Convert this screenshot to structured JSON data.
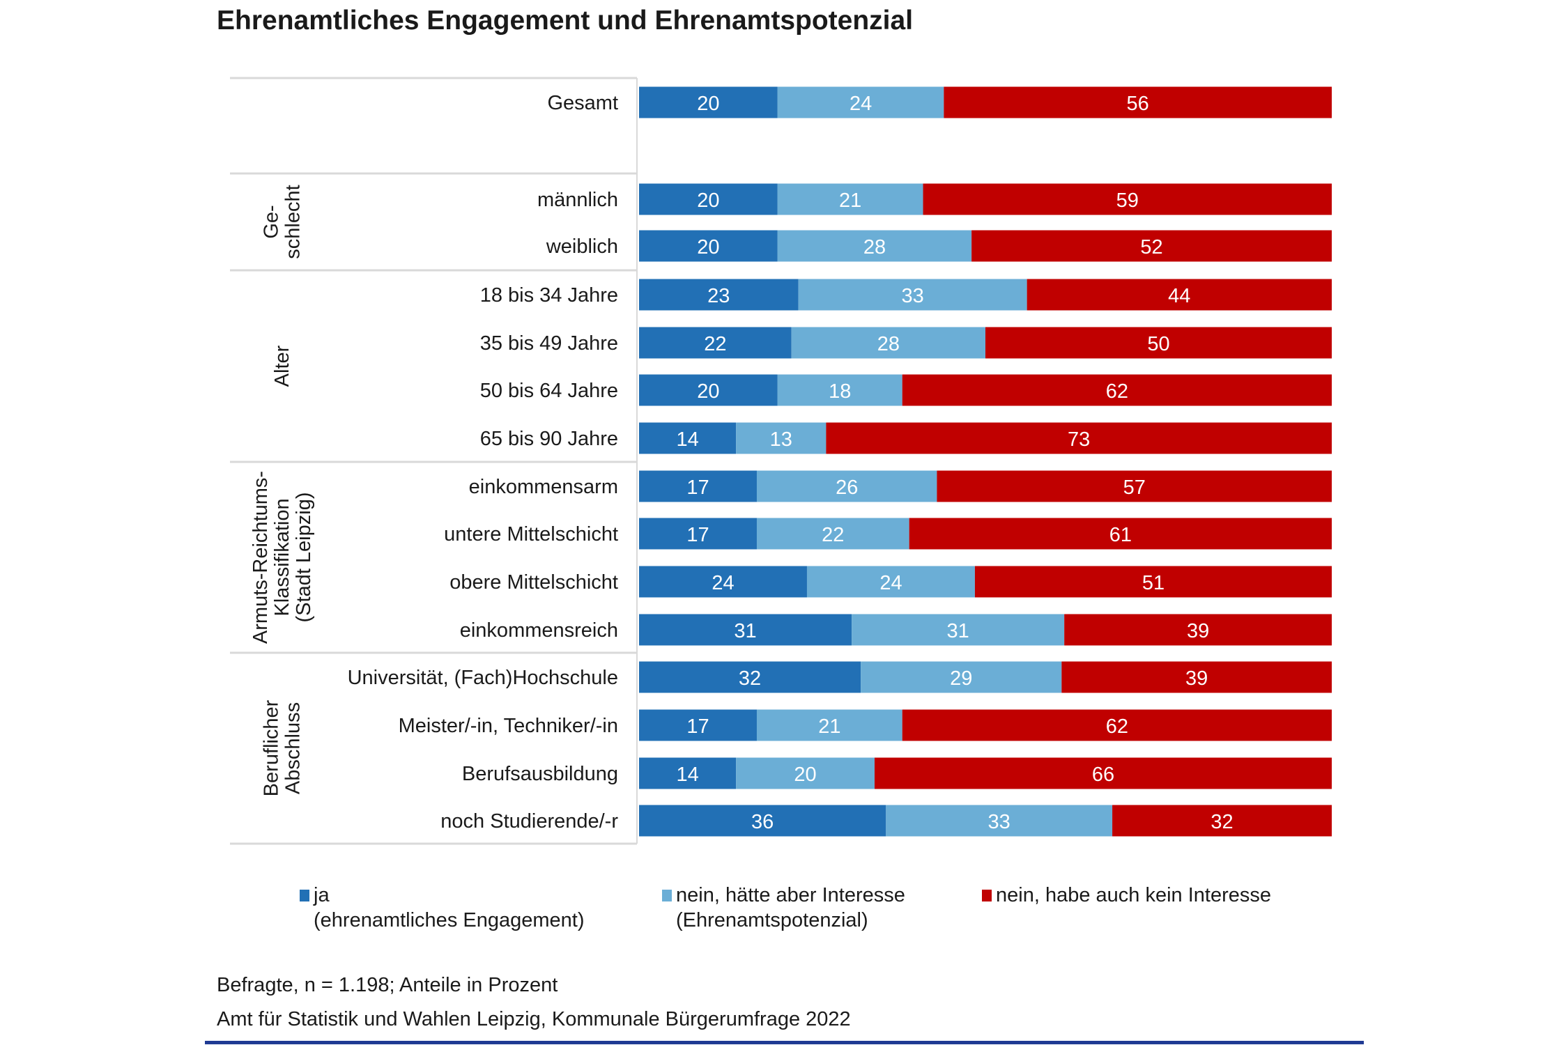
{
  "chart_data": {
    "type": "bar",
    "orientation": "horizontal",
    "stacked": true,
    "title": "Ehrenamtliches Engagement und Ehrenamtspotenzial",
    "categories": [
      "Gesamt",
      "männlich",
      "weiblich",
      "18 bis 34 Jahre",
      "35 bis 49 Jahre",
      "50 bis 64 Jahre",
      "65 bis 90 Jahre",
      "einkommensarm",
      "untere Mittelschicht",
      "obere Mittelschicht",
      "einkommensreich",
      "Universität, (Fach)Hochschule",
      "Meister/-in, Techniker/-in",
      "Berufsausbildung",
      "noch Studierende/-r"
    ],
    "groups": [
      {
        "label": "",
        "lines": [],
        "rows": [
          0
        ]
      },
      {
        "label": "Geschlecht",
        "lines": [
          "Ge-",
          "schlecht"
        ],
        "rows": [
          1,
          2
        ]
      },
      {
        "label": "Alter",
        "lines": [
          "Alter"
        ],
        "rows": [
          3,
          4,
          5,
          6
        ]
      },
      {
        "label": "Armuts-Reichtums-Klassifikation (Stadt Leipzig)",
        "lines": [
          "Armuts-Reichtums-",
          "Klassifikation",
          "(Stadt Leipzig)"
        ],
        "rows": [
          7,
          8,
          9,
          10
        ]
      },
      {
        "label": "Beruflicher Abschluss",
        "lines": [
          "Beruflicher",
          "Abschluss"
        ],
        "rows": [
          11,
          12,
          13,
          14
        ]
      }
    ],
    "series": [
      {
        "name": "ja (ehrenamtliches Engagement)",
        "legend_lines": [
          "ja",
          "(ehrenamtliches Engagement)"
        ],
        "color": "#2270b5",
        "values": [
          20,
          20,
          20,
          23,
          22,
          20,
          14,
          17,
          17,
          24,
          31,
          32,
          17,
          14,
          36
        ]
      },
      {
        "name": "nein, hätte aber Interesse (Ehrenamtspotenzial)",
        "legend_lines": [
          "nein, hätte aber Interesse",
          "(Ehrenamtspotenzial)"
        ],
        "color": "#6baed6",
        "values": [
          24,
          21,
          28,
          33,
          28,
          18,
          13,
          26,
          22,
          24,
          31,
          29,
          21,
          20,
          33
        ]
      },
      {
        "name": "nein, habe auch kein Interesse",
        "legend_lines": [
          "nein, habe auch kein Interesse"
        ],
        "color": "#c00000",
        "values": [
          56,
          59,
          52,
          44,
          50,
          62,
          73,
          57,
          61,
          51,
          39,
          39,
          62,
          66,
          32
        ]
      }
    ],
    "unit": "%",
    "xlim": [
      0,
      100
    ],
    "grid": false,
    "legend_position": "bottom",
    "data_labels": true
  },
  "footer": {
    "note": "Befragte, n = 1.198; Anteile in Prozent",
    "source": "Amt für Statistik und Wahlen Leipzig, Kommunale Bürgerumfrage 2022"
  }
}
